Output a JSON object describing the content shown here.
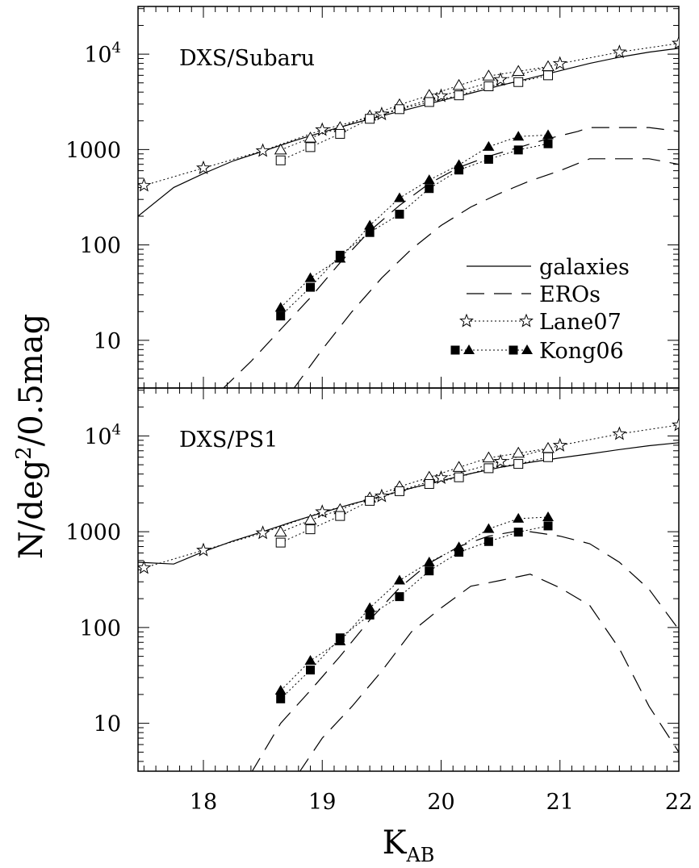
{
  "figure": {
    "ylabel_main": "N/deg",
    "ylabel_sup": "2",
    "ylabel_rest": "/0.5mag",
    "xlabel_main": "K",
    "xlabel_sub": "AB"
  },
  "legend": {
    "galaxies": "galaxies",
    "eros": "EROs",
    "lane07": "Lane07",
    "kong06": "Kong06"
  },
  "chart_data": [
    {
      "type": "line",
      "panel_label": "DXS/Subaru",
      "xlim": [
        17.45,
        22.0
      ],
      "ylim_log10": [
        0.5,
        4.5
      ],
      "yscale": "log",
      "x_ticks": [
        "18",
        "19",
        "20",
        "21",
        "22"
      ],
      "y_ticks": [
        {
          "value": 10,
          "label": "10"
        },
        {
          "value": 100,
          "label": "100"
        },
        {
          "value": 1000,
          "label": "1000"
        },
        {
          "value": 10000,
          "base": "10",
          "exp": "4"
        }
      ],
      "series": [
        {
          "name": "galaxies",
          "style": "solid",
          "x": [
            17.45,
            17.75,
            18.0,
            18.25,
            18.5,
            18.75,
            19.0,
            19.25,
            19.5,
            19.75,
            20.0,
            20.25,
            20.5,
            20.75,
            21.0,
            21.25,
            21.5,
            21.75,
            22.0
          ],
          "y": [
            200,
            400,
            560,
            760,
            960,
            1220,
            1520,
            1860,
            2250,
            2700,
            3250,
            3900,
            4700,
            5600,
            6700,
            8000,
            9300,
            10500,
            11500
          ]
        },
        {
          "name": "EROs",
          "style": "dashed",
          "x": [
            18.15,
            18.4,
            18.65,
            18.9,
            19.15,
            19.4,
            19.65,
            19.9,
            20.15,
            20.4,
            20.65,
            20.9,
            21.15,
            21.25,
            21.5,
            21.75,
            22.0
          ],
          "y": [
            3,
            6,
            13,
            28,
            65,
            140,
            260,
            440,
            650,
            850,
            1050,
            1300,
            1550,
            1700,
            1700,
            1700,
            1550
          ]
        },
        {
          "name": "EROs",
          "style": "dashed",
          "x": [
            18.75,
            19.0,
            19.25,
            19.5,
            19.75,
            20.0,
            20.25,
            20.5,
            20.75,
            21.0,
            21.25,
            21.5,
            21.75,
            22.0
          ],
          "y": [
            3,
            8,
            20,
            45,
            90,
            160,
            250,
            350,
            470,
            600,
            800,
            800,
            800,
            700
          ]
        },
        {
          "name": "Lane07",
          "marker": "open-star",
          "x": [
            17.5,
            18.0,
            18.5,
            19.0,
            19.5,
            20.0,
            20.5,
            21.0,
            21.5,
            22.0
          ],
          "y": [
            420,
            640,
            970,
            1610,
            2350,
            3650,
            5400,
            7950,
            10500,
            13000
          ]
        },
        {
          "name": "Kong06",
          "marker": "open-triangle",
          "x": [
            18.65,
            18.9,
            19.15,
            19.4,
            19.65,
            19.9,
            20.15,
            20.4,
            20.65,
            20.9
          ],
          "y": [
            990,
            1320,
            1700,
            2250,
            2950,
            3700,
            4700,
            5900,
            6600,
            7400
          ]
        },
        {
          "name": "Kong06",
          "marker": "open-square",
          "x": [
            18.65,
            18.9,
            19.15,
            19.4,
            19.65,
            19.9,
            20.15,
            20.4,
            20.65,
            20.9
          ],
          "y": [
            770,
            1060,
            1460,
            2100,
            2650,
            3150,
            3700,
            4600,
            5100,
            6000
          ]
        },
        {
          "name": "Kong06",
          "marker": "filled-triangle",
          "x": [
            18.65,
            18.9,
            19.15,
            19.4,
            19.65,
            19.9,
            20.15,
            20.4,
            20.65,
            20.9
          ],
          "y": [
            22,
            45,
            72,
            160,
            310,
            480,
            690,
            1070,
            1370,
            1420
          ]
        },
        {
          "name": "Kong06",
          "marker": "filled-square",
          "x": [
            18.65,
            18.9,
            19.15,
            19.4,
            19.65,
            19.9,
            20.15,
            20.4,
            20.65,
            20.9
          ],
          "y": [
            18,
            36,
            78,
            135,
            210,
            390,
            610,
            790,
            990,
            1150
          ]
        }
      ]
    },
    {
      "type": "line",
      "panel_label": "DXS/PS1",
      "xlim": [
        17.45,
        22.0
      ],
      "ylim_log10": [
        0.5,
        4.5
      ],
      "yscale": "log",
      "x_ticks": [
        "18",
        "19",
        "20",
        "21",
        "22"
      ],
      "y_ticks": [
        {
          "value": 10,
          "label": "10"
        },
        {
          "value": 100,
          "label": "100"
        },
        {
          "value": 1000,
          "label": "1000"
        },
        {
          "value": 10000,
          "base": "10",
          "exp": "4"
        }
      ],
      "series": [
        {
          "name": "galaxies",
          "style": "solid",
          "x": [
            17.45,
            17.75,
            18.0,
            18.25,
            18.5,
            18.75,
            19.0,
            19.25,
            19.5,
            19.75,
            20.0,
            20.25,
            20.5,
            20.75,
            21.0,
            21.25,
            21.5,
            21.75,
            22.0
          ],
          "y": [
            480,
            460,
            620,
            800,
            1000,
            1270,
            1580,
            1950,
            2350,
            2850,
            3400,
            4050,
            4700,
            5300,
            5900,
            6500,
            7200,
            7900,
            8500
          ]
        },
        {
          "name": "EROs",
          "style": "dashed",
          "x": [
            18.4,
            18.65,
            18.9,
            19.15,
            19.4,
            19.65,
            19.9,
            20.15,
            20.4,
            20.65,
            20.75,
            21.0,
            21.25,
            21.5,
            21.75,
            22.0
          ],
          "y": [
            3,
            10,
            22,
            50,
            120,
            260,
            470,
            700,
            900,
            1020,
            1000,
            900,
            750,
            480,
            250,
            95
          ]
        },
        {
          "name": "EROs",
          "style": "dashed",
          "x": [
            18.8,
            19.0,
            19.25,
            19.5,
            19.75,
            20.0,
            20.25,
            20.5,
            20.75,
            21.0,
            21.25,
            21.5,
            21.75,
            22.0
          ],
          "y": [
            3,
            7,
            15,
            35,
            90,
            160,
            270,
            310,
            360,
            260,
            170,
            60,
            15,
            5
          ]
        },
        {
          "name": "Lane07",
          "marker": "open-star",
          "x": [
            17.5,
            18.0,
            18.5,
            19.0,
            19.5,
            20.0,
            20.5,
            21.0,
            21.5,
            22.0
          ],
          "y": [
            420,
            640,
            970,
            1610,
            2350,
            3650,
            5400,
            7950,
            10500,
            13000
          ]
        },
        {
          "name": "Kong06",
          "marker": "open-triangle",
          "x": [
            18.65,
            18.9,
            19.15,
            19.4,
            19.65,
            19.9,
            20.15,
            20.4,
            20.65,
            20.9
          ],
          "y": [
            990,
            1320,
            1700,
            2250,
            2950,
            3700,
            4700,
            5900,
            6600,
            7400
          ]
        },
        {
          "name": "Kong06",
          "marker": "open-square",
          "x": [
            18.65,
            18.9,
            19.15,
            19.4,
            19.65,
            19.9,
            20.15,
            20.4,
            20.65,
            20.9
          ],
          "y": [
            770,
            1060,
            1460,
            2100,
            2650,
            3150,
            3700,
            4600,
            5100,
            6000
          ]
        },
        {
          "name": "Kong06",
          "marker": "filled-triangle",
          "x": [
            18.65,
            18.9,
            19.15,
            19.4,
            19.65,
            19.9,
            20.15,
            20.4,
            20.65,
            20.9
          ],
          "y": [
            22,
            45,
            72,
            160,
            310,
            480,
            690,
            1070,
            1370,
            1420
          ]
        },
        {
          "name": "Kong06",
          "marker": "filled-square",
          "x": [
            18.65,
            18.9,
            19.15,
            19.4,
            19.65,
            19.9,
            20.15,
            20.4,
            20.65,
            20.9
          ],
          "y": [
            18,
            36,
            78,
            135,
            210,
            390,
            610,
            790,
            990,
            1150
          ]
        }
      ]
    }
  ]
}
